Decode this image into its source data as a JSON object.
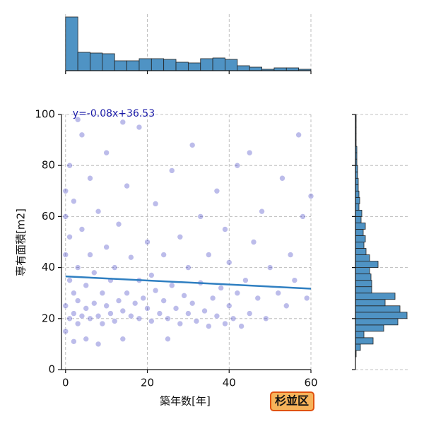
{
  "chart_data": {
    "type": "scatter",
    "xlabel": "築年数[年]",
    "ylabel": "専有面積[m2]",
    "badge": "杉並区",
    "xlim": [
      -1,
      60
    ],
    "ylim": [
      0,
      100
    ],
    "xticks": [
      0,
      20,
      40,
      60
    ],
    "yticks": [
      0,
      20,
      40,
      60,
      80,
      100
    ],
    "grid": true,
    "color": "#2020b8",
    "x": [
      0,
      0,
      0,
      0,
      0,
      1,
      1,
      1,
      1,
      2,
      2,
      2,
      2,
      3,
      3,
      3,
      4,
      4,
      4,
      5,
      5,
      5,
      6,
      6,
      6,
      7,
      7,
      8,
      8,
      8,
      9,
      9,
      10,
      10,
      10,
      11,
      11,
      12,
      12,
      13,
      13,
      14,
      14,
      15,
      15,
      16,
      16,
      17,
      18,
      18,
      18,
      19,
      20,
      20,
      21,
      21,
      22,
      22,
      23,
      24,
      24,
      25,
      25,
      26,
      26,
      27,
      28,
      28,
      29,
      30,
      30,
      31,
      31,
      32,
      33,
      33,
      34,
      35,
      35,
      36,
      37,
      37,
      38,
      39,
      39,
      40,
      40,
      41,
      42,
      42,
      43,
      44,
      45,
      46,
      47,
      48,
      49,
      50,
      52,
      53,
      54,
      55,
      56,
      58,
      59,
      60,
      57,
      45,
      14,
      3
    ],
    "values": [
      25,
      45,
      60,
      70,
      15,
      20,
      35,
      52,
      80,
      22,
      30,
      11,
      66,
      18,
      40,
      27,
      21,
      55,
      92,
      24,
      33,
      12,
      20,
      45,
      75,
      26,
      38,
      21,
      62,
      10,
      30,
      18,
      25,
      48,
      85,
      22,
      35,
      40,
      19,
      27,
      57,
      23,
      12,
      30,
      72,
      21,
      44,
      26,
      20,
      35,
      95,
      28,
      24,
      50,
      19,
      37,
      31,
      65,
      22,
      27,
      45,
      20,
      12,
      33,
      78,
      24,
      18,
      52,
      29,
      22,
      40,
      26,
      88,
      19,
      34,
      60,
      23,
      17,
      45,
      28,
      21,
      70,
      32,
      18,
      55,
      25,
      42,
      20,
      30,
      80,
      17,
      35,
      22,
      50,
      28,
      62,
      20,
      40,
      30,
      75,
      25,
      45,
      35,
      60,
      28,
      68,
      92,
      85,
      97,
      98
    ],
    "regression": {
      "slope": -0.08,
      "intercept": 36.53,
      "label": "y=-0.08x+36.53",
      "color": "#2f7fc1"
    },
    "x_histogram": {
      "bins": [
        0,
        3,
        6,
        9,
        12,
        15,
        18,
        21,
        24,
        27,
        30,
        33,
        36,
        39,
        42,
        45,
        48,
        51,
        54,
        57,
        60
      ],
      "counts": [
        760,
        260,
        250,
        240,
        140,
        140,
        170,
        170,
        160,
        120,
        110,
        170,
        180,
        160,
        70,
        50,
        20,
        40,
        40,
        20
      ],
      "ylim": [
        0,
        800
      ],
      "color": "#4f93c4"
    },
    "y_histogram": {
      "bins": [
        0,
        2.5,
        5,
        7.5,
        10,
        12.5,
        15,
        17.5,
        20,
        22.5,
        25,
        27.5,
        30,
        32.5,
        35,
        37.5,
        40,
        42.5,
        45,
        47.5,
        50,
        52.5,
        55,
        57.5,
        60,
        62.5,
        65,
        67.5,
        70,
        72.5,
        75,
        77.5,
        80,
        82.5,
        85,
        87.5,
        90,
        92.5,
        95,
        97.5,
        100
      ],
      "counts": [
        0,
        0,
        1,
        7,
        25,
        12,
        40,
        60,
        73,
        63,
        42,
        56,
        23,
        23,
        22,
        20,
        32,
        20,
        15,
        12,
        14,
        11,
        14,
        8,
        9,
        5,
        6,
        5,
        4,
        4,
        3,
        3,
        2,
        2,
        2,
        1,
        1,
        1,
        1,
        1
      ],
      "xlim": [
        0,
        75
      ],
      "color": "#4f93c4"
    }
  }
}
